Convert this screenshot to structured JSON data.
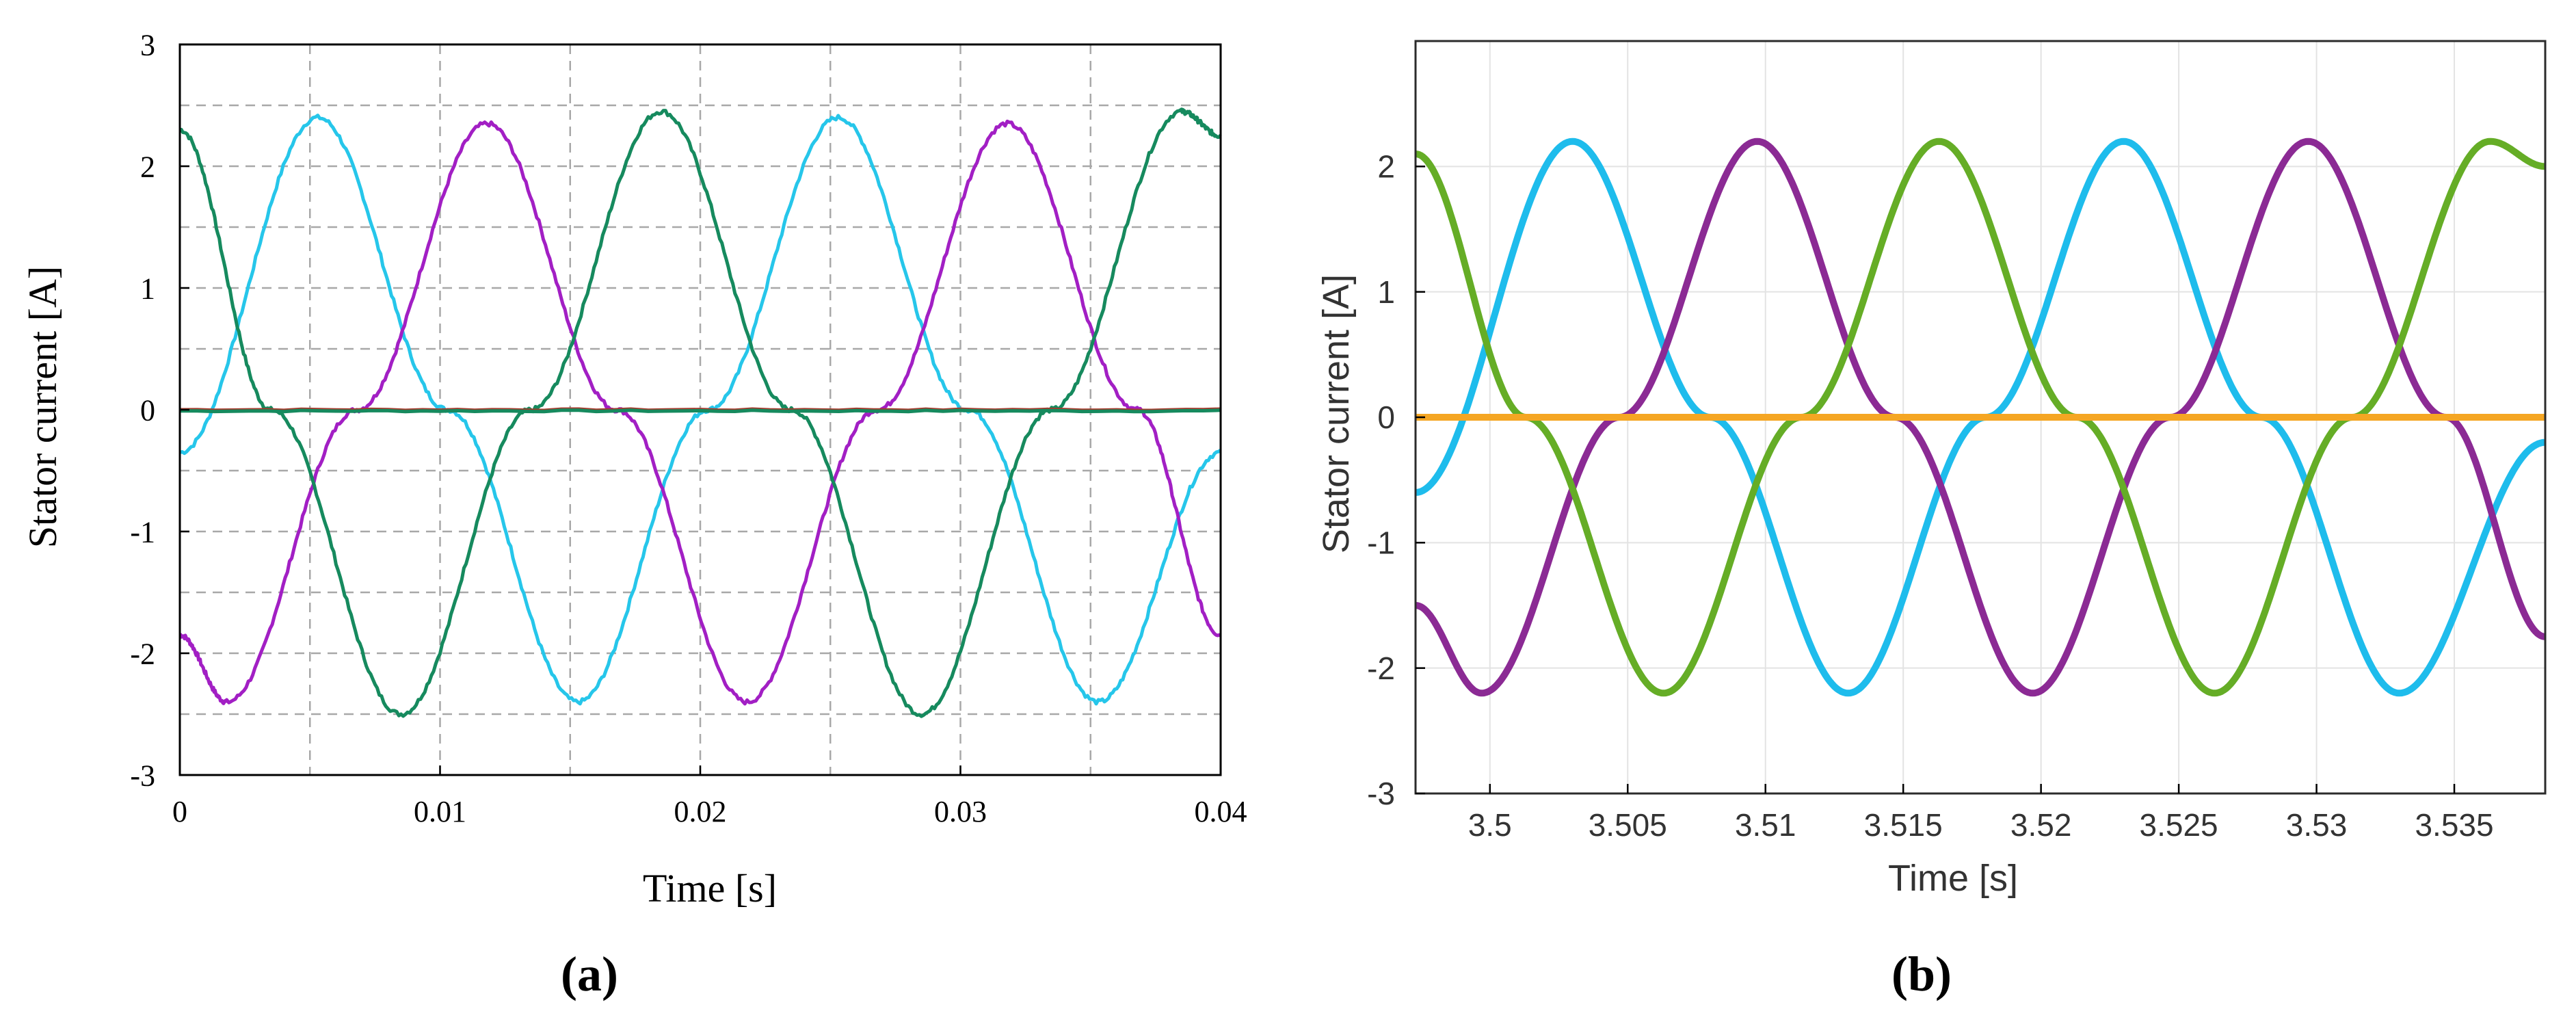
{
  "chart_data": [
    {
      "panel_label": "(a)",
      "type": "line",
      "xlabel": "Time [s]",
      "ylabel": "Stator current [A]",
      "xlim": [
        0,
        0.04
      ],
      "ylim": [
        -3,
        3
      ],
      "x_ticks": [
        0,
        0.01,
        0.02,
        0.03,
        0.04
      ],
      "x_tick_labels": [
        "0",
        "0.01",
        "0.02",
        "0.03",
        "0.04"
      ],
      "y_ticks": [
        3,
        2,
        1,
        0,
        -1,
        -2,
        -3
      ],
      "y_tick_labels": [
        "3",
        "2",
        "1",
        "0",
        "-1",
        "-2",
        "-3"
      ],
      "grid": "dashed",
      "x_grid": [
        0.005,
        0.01,
        0.015,
        0.02,
        0.025,
        0.03,
        0.035,
        0.04
      ],
      "y_grid": [
        2.5,
        2,
        1.5,
        1,
        0.5,
        0,
        -0.5,
        -1,
        -1.5,
        -2,
        -2.5
      ],
      "series": [
        {
          "color": "#26c6ea",
          "x": [
            0,
            0.0053,
            0.0103,
            0.0153,
            0.0203,
            0.0253,
            0.0303,
            0.0353,
            0.04
          ],
          "y": [
            -0.35,
            2.4,
            0,
            -2.4,
            0,
            2.4,
            0,
            -2.4,
            -0.35
          ]
        },
        {
          "color": "#a21fc4",
          "x": [
            0,
            0.0018,
            0.0068,
            0.0118,
            0.0168,
            0.0218,
            0.0268,
            0.0318,
            0.0368,
            0.04
          ],
          "y": [
            -1.85,
            -2.4,
            0,
            2.35,
            0,
            -2.4,
            0,
            2.35,
            0,
            -1.85
          ]
        },
        {
          "color": "#168a5e",
          "x": [
            0,
            0.0035,
            0.0085,
            0.0135,
            0.0185,
            0.0235,
            0.0285,
            0.0335,
            0.0385,
            0.04
          ],
          "y": [
            2.3,
            0,
            -2.5,
            0,
            2.45,
            0,
            -2.5,
            0,
            2.45,
            2.25
          ]
        },
        {
          "color": "#a43a2c",
          "x": [
            0,
            0.04
          ],
          "y": [
            0,
            0
          ]
        },
        {
          "color": "#168a5e",
          "x": [
            0,
            0.04
          ],
          "y": [
            -0.01,
            -0.01
          ]
        }
      ]
    },
    {
      "panel_label": "(b)",
      "type": "line",
      "xlabel": "Time [s]",
      "ylabel": "Stator current [A]",
      "xlim": [
        3.4973,
        3.5383
      ],
      "ylim": [
        -3,
        3
      ],
      "x_ticks": [
        3.5,
        3.505,
        3.51,
        3.515,
        3.52,
        3.525,
        3.53,
        3.535
      ],
      "x_tick_labels": [
        "3.5",
        "3.505",
        "3.51",
        "3.515",
        "3.52",
        "3.525",
        "3.53",
        "3.535"
      ],
      "y_ticks": [
        2,
        1,
        0,
        -1,
        -2,
        -3
      ],
      "y_tick_labels": [
        "2",
        "1",
        "0",
        "-1",
        "-2",
        "-3"
      ],
      "grid": "solid-light",
      "series": [
        {
          "color": "#1ebcec",
          "x": [
            3.4973,
            3.503,
            3.508,
            3.513,
            3.518,
            3.523,
            3.528,
            3.533,
            3.5383
          ],
          "y": [
            -0.6,
            2.2,
            0,
            -2.2,
            0,
            2.2,
            0,
            -2.2,
            -0.2
          ]
        },
        {
          "color": "#8b2a94",
          "x": [
            3.4973,
            3.4997,
            3.5047,
            3.5097,
            3.5147,
            3.5197,
            3.5247,
            3.5297,
            3.5347,
            3.5383
          ],
          "y": [
            -1.5,
            -2.2,
            0,
            2.2,
            0,
            -2.2,
            0,
            2.2,
            0,
            -1.75
          ]
        },
        {
          "color": "#65ad26",
          "x": [
            3.4973,
            3.5013,
            3.5063,
            3.5113,
            3.5163,
            3.5213,
            3.5263,
            3.5313,
            3.5363,
            3.5383
          ],
          "y": [
            2.1,
            0,
            -2.2,
            0,
            2.2,
            0,
            -2.2,
            0,
            2.2,
            2.0
          ]
        },
        {
          "color": "#f5a623",
          "x": [
            3.4973,
            3.5383
          ],
          "y": [
            0,
            0
          ]
        }
      ]
    }
  ]
}
